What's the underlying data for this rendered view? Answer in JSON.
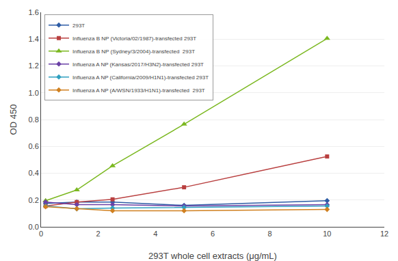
{
  "chart_data": {
    "type": "line",
    "xlabel": "293T whole cell extracts (μg/mL)",
    "ylabel": "OD 450",
    "xlim": [
      0,
      12
    ],
    "xticks": [
      0,
      2,
      4,
      6,
      8,
      10,
      12
    ],
    "ylim": [
      0,
      1.6
    ],
    "yticks": [
      {
        "value": 0,
        "label": "0.0"
      },
      0.2,
      0.4,
      0.6,
      0.8,
      {
        "value": 1.0,
        "label": "1.0"
      },
      1.2,
      1.4,
      1.6
    ],
    "grid": "y",
    "legend": "upper left",
    "series": [
      {
        "name": "293T",
        "color": "#2e5da6",
        "marker": "diamond",
        "line_style": "solid",
        "x": [
          0.16,
          1.25,
          2.5,
          5,
          10
        ],
        "values": [
          0.175,
          0.185,
          0.185,
          0.16,
          0.195
        ]
      },
      {
        "name": "Influenza B NP (Victoria/02/1987)-transfected 293T",
        "color": "#b94040",
        "marker": "square",
        "line_style": "solid",
        "x": [
          0.16,
          1.25,
          2.5,
          5,
          10
        ],
        "values": [
          0.155,
          0.185,
          0.205,
          0.295,
          0.525
        ]
      },
      {
        "name": "Influenza B NP (Sydney/3/2004)-transfected  293T",
        "color": "#7bb820",
        "marker": "triangle-up",
        "line_style": "solid",
        "x": [
          0.16,
          1.25,
          2.5,
          5,
          10
        ],
        "values": [
          0.195,
          0.275,
          0.455,
          0.765,
          1.405
        ]
      },
      {
        "name": "Influenza A NP (Kansas/2017/H3N2)-transfected 293T",
        "color": "#6b40a6",
        "marker": "diamond",
        "line_style": "solid",
        "x": [
          0.16,
          1.25,
          2.5,
          5,
          10
        ],
        "values": [
          0.185,
          0.165,
          0.165,
          0.155,
          0.165
        ]
      },
      {
        "name": "Influenza A NP (California/2009/H1N1)-transfected 293T",
        "color": "#2fa0c0",
        "marker": "diamond",
        "line_style": "solid",
        "x": [
          0.16,
          1.25,
          2.5,
          5,
          10
        ],
        "values": [
          0.155,
          0.135,
          0.14,
          0.145,
          0.155
        ]
      },
      {
        "name": "Influenza A NP (A/WSN/1933/H1N1)-transfected  293T",
        "color": "#d08020",
        "marker": "diamond",
        "line_style": "solid",
        "x": [
          0.16,
          1.25,
          2.5,
          5,
          10
        ],
        "values": [
          0.15,
          0.135,
          0.12,
          0.12,
          0.13
        ]
      }
    ]
  }
}
